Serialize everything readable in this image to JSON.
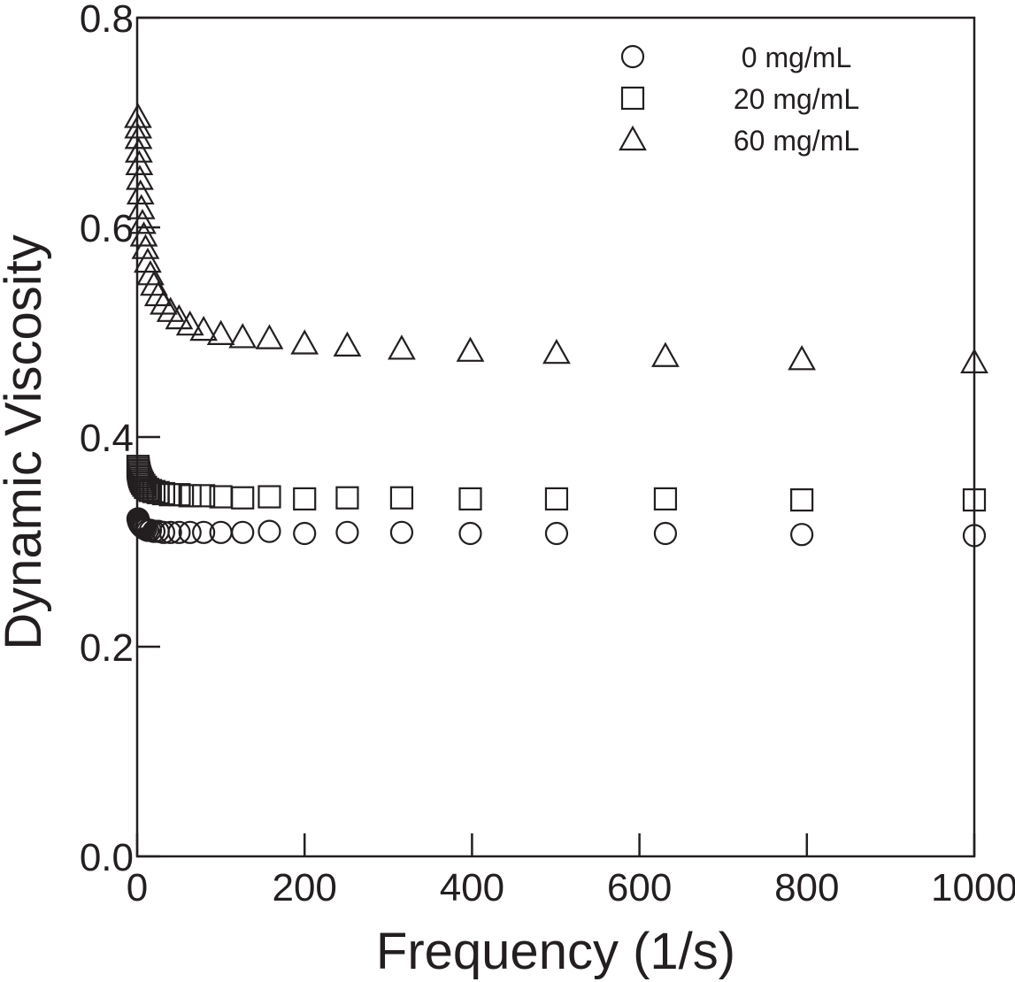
{
  "chart_data": {
    "type": "scatter",
    "xlabel": "Frequency (1/s)",
    "ylabel": "Dynamic Viscosity",
    "xlim": [
      0,
      1000
    ],
    "ylim": [
      0,
      0.8
    ],
    "xticks": [
      0,
      200,
      400,
      600,
      800,
      1000
    ],
    "xtick_labels": [
      "0",
      "200",
      "400",
      "600",
      "800",
      "1000"
    ],
    "yticks": [
      0.0,
      0.2,
      0.4,
      0.6,
      0.8
    ],
    "ytick_labels": [
      "0.0",
      "0.2",
      "0.4",
      "0.6",
      "0.8"
    ],
    "grid": false,
    "legend_position": "top-right",
    "marker_color": "#231f20",
    "series": [
      {
        "name": "0 mg/mL",
        "marker": "circle",
        "x": [
          1,
          1.26,
          1.58,
          2,
          2.51,
          3.16,
          3.98,
          5.01,
          6.31,
          7.94,
          10,
          12.6,
          15.8,
          20,
          25.1,
          31.6,
          39.8,
          50.1,
          63.1,
          79.4,
          100,
          126,
          158,
          200,
          251,
          316,
          398,
          501,
          631,
          794,
          1000
        ],
        "y": [
          0.322,
          0.321,
          0.32,
          0.319,
          0.318,
          0.317,
          0.316,
          0.315,
          0.314,
          0.313,
          0.312,
          0.311,
          0.311,
          0.31,
          0.31,
          0.309,
          0.309,
          0.309,
          0.309,
          0.309,
          0.309,
          0.309,
          0.31,
          0.308,
          0.309,
          0.309,
          0.308,
          0.308,
          0.308,
          0.307,
          0.306
        ]
      },
      {
        "name": "20 mg/mL",
        "marker": "square",
        "x": [
          1,
          1.26,
          1.58,
          2,
          2.51,
          3.16,
          3.98,
          5.01,
          6.31,
          7.94,
          10,
          12.6,
          15.8,
          20,
          25.1,
          31.6,
          39.8,
          50.1,
          63.1,
          79.4,
          100,
          126,
          158,
          200,
          251,
          316,
          398,
          501,
          631,
          794,
          1000
        ],
        "y": [
          0.372,
          0.37,
          0.368,
          0.366,
          0.364,
          0.362,
          0.36,
          0.358,
          0.356,
          0.354,
          0.352,
          0.35,
          0.349,
          0.348,
          0.347,
          0.346,
          0.345,
          0.345,
          0.344,
          0.344,
          0.343,
          0.342,
          0.343,
          0.341,
          0.342,
          0.342,
          0.341,
          0.341,
          0.341,
          0.34,
          0.34
        ]
      },
      {
        "name": "60 mg/mL",
        "marker": "triangle",
        "x": [
          1,
          1.26,
          1.58,
          2,
          2.51,
          3.16,
          3.98,
          5.01,
          6.31,
          7.94,
          10,
          12.6,
          15.8,
          20,
          25.1,
          31.6,
          39.8,
          50.1,
          63.1,
          79.4,
          100,
          126,
          158,
          200,
          251,
          316,
          398,
          501,
          631,
          794,
          1000
        ],
        "y": [
          0.705,
          0.695,
          0.685,
          0.672,
          0.66,
          0.646,
          0.632,
          0.618,
          0.604,
          0.592,
          0.58,
          0.567,
          0.555,
          0.545,
          0.535,
          0.527,
          0.52,
          0.513,
          0.507,
          0.502,
          0.498,
          0.495,
          0.494,
          0.489,
          0.487,
          0.484,
          0.482,
          0.48,
          0.477,
          0.474,
          0.471
        ]
      }
    ]
  }
}
